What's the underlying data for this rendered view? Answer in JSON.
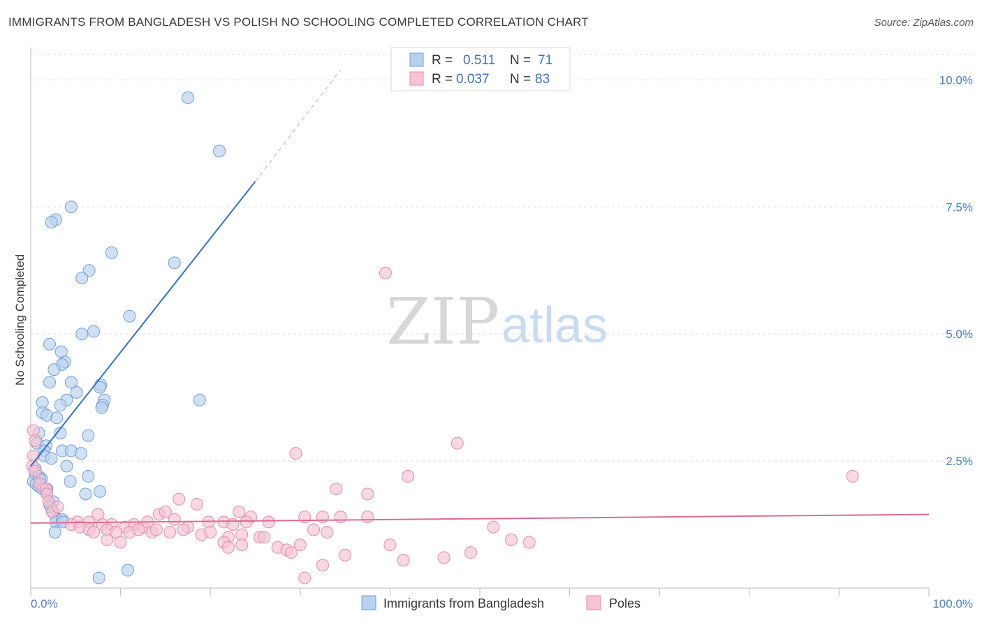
{
  "header": {
    "title": "IMMIGRANTS FROM BANGLADESH VS POLISH NO SCHOOLING COMPLETED CORRELATION CHART",
    "source": "Source: ZipAtlas.com"
  },
  "watermark": {
    "zip": "ZIP",
    "atlas": "atlas"
  },
  "legend": {
    "r_label": "R =",
    "n_label": "N =",
    "series": [
      {
        "r": "0.511",
        "n": "71"
      },
      {
        "r": "0.037",
        "n": "83"
      }
    ]
  },
  "colors": {
    "blue_fill": "#b8d1ef",
    "blue_stroke": "#6f9fd8",
    "blue_line": "#2f6fce",
    "pink_fill": "#f6c3d3",
    "pink_stroke": "#e88aa8",
    "pink_line": "#e06a92"
  },
  "chart_data": {
    "type": "scatter",
    "title": "IMMIGRANTS FROM BANGLADESH VS POLISH NO SCHOOLING COMPLETED CORRELATION CHART",
    "xlabel": "",
    "ylabel": "No Schooling Completed",
    "xlim": [
      0,
      100
    ],
    "ylim": [
      0,
      10.5
    ],
    "x_tick_labels": [
      "0.0%",
      "100.0%"
    ],
    "y_ticks": [
      2.5,
      5.0,
      7.5,
      10.0
    ],
    "y_tick_labels": [
      "2.5%",
      "5.0%",
      "7.5%",
      "10.0%"
    ],
    "grid": true,
    "legend_position": "top-center",
    "series": [
      {
        "name": "Immigrants from Bangladesh",
        "r": 0.511,
        "n": 71,
        "trend": {
          "x0": 0,
          "y0": 2.4,
          "x1": 25,
          "y1": 8.0,
          "dashed_to_x": 34.5,
          "dashed_to_y": 10.2
        },
        "points": [
          [
            17.5,
            9.65
          ],
          [
            21,
            8.6
          ],
          [
            4.5,
            7.5
          ],
          [
            2.8,
            7.25
          ],
          [
            2.3,
            7.2
          ],
          [
            9,
            6.6
          ],
          [
            16,
            6.4
          ],
          [
            6.5,
            6.25
          ],
          [
            5.7,
            6.1
          ],
          [
            11,
            5.35
          ],
          [
            7,
            5.05
          ],
          [
            5.7,
            5.0
          ],
          [
            2.1,
            4.8
          ],
          [
            3.4,
            4.65
          ],
          [
            3.8,
            4.45
          ],
          [
            3.5,
            4.4
          ],
          [
            2.6,
            4.3
          ],
          [
            2.1,
            4.05
          ],
          [
            7.8,
            4.0
          ],
          [
            7.7,
            3.95
          ],
          [
            4.5,
            4.05
          ],
          [
            5.1,
            3.85
          ],
          [
            8.2,
            3.7
          ],
          [
            8,
            3.6
          ],
          [
            7.9,
            3.55
          ],
          [
            4,
            3.7
          ],
          [
            3.3,
            3.6
          ],
          [
            1.3,
            3.65
          ],
          [
            1.3,
            3.45
          ],
          [
            1.8,
            3.4
          ],
          [
            2.9,
            3.35
          ],
          [
            18.8,
            3.7
          ],
          [
            0.9,
            3.05
          ],
          [
            3.3,
            3.05
          ],
          [
            6.4,
            3.0
          ],
          [
            0.7,
            2.85
          ],
          [
            1.7,
            2.8
          ],
          [
            1.5,
            2.7
          ],
          [
            3.5,
            2.7
          ],
          [
            4.5,
            2.7
          ],
          [
            5.6,
            2.65
          ],
          [
            1.5,
            2.6
          ],
          [
            2.3,
            2.55
          ],
          [
            0.5,
            2.35
          ],
          [
            4,
            2.4
          ],
          [
            0.5,
            2.25
          ],
          [
            0.9,
            2.2
          ],
          [
            1.2,
            2.15
          ],
          [
            6.4,
            2.2
          ],
          [
            0.3,
            2.1
          ],
          [
            0.6,
            2.05
          ],
          [
            4.4,
            2.1
          ],
          [
            0.9,
            2.0
          ],
          [
            1.5,
            1.95
          ],
          [
            1.7,
            1.9
          ],
          [
            1.8,
            1.95
          ],
          [
            6.1,
            1.85
          ],
          [
            7.7,
            1.9
          ],
          [
            2.1,
            1.65
          ],
          [
            2.5,
            1.7
          ],
          [
            2.5,
            1.5
          ],
          [
            3.0,
            1.35
          ],
          [
            2.8,
            1.3
          ],
          [
            3.5,
            1.35
          ],
          [
            2.7,
            1.1
          ],
          [
            3.6,
            1.3
          ],
          [
            7.6,
            0.2
          ],
          [
            10.8,
            0.35
          ],
          [
            1.0,
            2.15
          ],
          [
            1.3,
            1.95
          ],
          [
            2.2,
            1.6
          ]
        ]
      },
      {
        "name": "Poles",
        "r": 0.037,
        "n": 83,
        "trend": {
          "x0": 0,
          "y0": 1.28,
          "x1": 100,
          "y1": 1.45
        },
        "points": [
          [
            39.5,
            6.2
          ],
          [
            47.5,
            2.85
          ],
          [
            29.5,
            2.65
          ],
          [
            42,
            2.2
          ],
          [
            91.5,
            2.2
          ],
          [
            34,
            1.95
          ],
          [
            37.5,
            1.85
          ],
          [
            0.3,
            3.1
          ],
          [
            0.5,
            2.9
          ],
          [
            0.3,
            2.6
          ],
          [
            0.2,
            2.4
          ],
          [
            0.5,
            2.3
          ],
          [
            1.0,
            2.05
          ],
          [
            1.7,
            1.95
          ],
          [
            1.8,
            1.85
          ],
          [
            2.0,
            1.7
          ],
          [
            2.4,
            1.5
          ],
          [
            16.5,
            1.75
          ],
          [
            18.5,
            1.65
          ],
          [
            14.3,
            1.45
          ],
          [
            15.0,
            1.5
          ],
          [
            7.5,
            1.45
          ],
          [
            23.2,
            1.5
          ],
          [
            24.5,
            1.4
          ],
          [
            30.5,
            1.4
          ],
          [
            32.5,
            1.4
          ],
          [
            34.5,
            1.4
          ],
          [
            37.5,
            1.4
          ],
          [
            5.2,
            1.3
          ],
          [
            6.5,
            1.3
          ],
          [
            8.0,
            1.25
          ],
          [
            9.0,
            1.25
          ],
          [
            10.5,
            1.2
          ],
          [
            11.5,
            1.25
          ],
          [
            12.5,
            1.2
          ],
          [
            13.0,
            1.3
          ],
          [
            16.0,
            1.35
          ],
          [
            17.5,
            1.2
          ],
          [
            19.8,
            1.3
          ],
          [
            21.5,
            1.3
          ],
          [
            22.5,
            1.25
          ],
          [
            24.0,
            1.3
          ],
          [
            26.5,
            1.3
          ],
          [
            4.5,
            1.25
          ],
          [
            5.5,
            1.2
          ],
          [
            6.5,
            1.15
          ],
          [
            7.0,
            1.1
          ],
          [
            8.5,
            1.15
          ],
          [
            9.5,
            1.1
          ],
          [
            11.0,
            1.1
          ],
          [
            12.0,
            1.15
          ],
          [
            13.5,
            1.1
          ],
          [
            14.0,
            1.15
          ],
          [
            15.5,
            1.1
          ],
          [
            17.0,
            1.15
          ],
          [
            19.0,
            1.05
          ],
          [
            20.0,
            1.1
          ],
          [
            22.0,
            1.0
          ],
          [
            23.5,
            1.05
          ],
          [
            25.5,
            1.0
          ],
          [
            26.0,
            1.0
          ],
          [
            31.5,
            1.15
          ],
          [
            33.0,
            1.1
          ],
          [
            51.5,
            1.2
          ],
          [
            8.5,
            0.95
          ],
          [
            10.0,
            0.9
          ],
          [
            21.5,
            0.9
          ],
          [
            22.0,
            0.8
          ],
          [
            23.5,
            0.85
          ],
          [
            27.5,
            0.8
          ],
          [
            28.5,
            0.75
          ],
          [
            29.0,
            0.7
          ],
          [
            30.0,
            0.85
          ],
          [
            40.0,
            0.85
          ],
          [
            53.5,
            0.95
          ],
          [
            55.5,
            0.9
          ],
          [
            35.0,
            0.65
          ],
          [
            41.5,
            0.55
          ],
          [
            46.0,
            0.6
          ],
          [
            49.0,
            0.7
          ],
          [
            32.5,
            0.45
          ],
          [
            30.5,
            0.2
          ],
          [
            3.0,
            1.6
          ]
        ]
      }
    ]
  },
  "bottom_legend": [
    {
      "label": "Immigrants from Bangladesh"
    },
    {
      "label": "Poles"
    }
  ]
}
